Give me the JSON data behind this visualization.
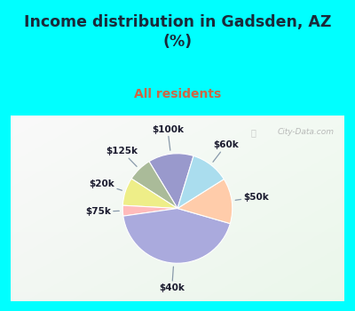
{
  "title": "Income distribution in Gadsden, AZ\n(%)",
  "subtitle": "All residents",
  "title_color": "#1a2a3a",
  "subtitle_color": "#cc6644",
  "bg_color": "#00ffff",
  "chart_bg_colors": [
    "#d8eed8",
    "#e8f5e8"
  ],
  "labels": [
    "$100k",
    "$125k",
    "$20k",
    "$75k",
    "$40k",
    "$50k",
    "$60k"
  ],
  "values": [
    13,
    7,
    8,
    3,
    42,
    13,
    11
  ],
  "colors": [
    "#9999cc",
    "#aabb99",
    "#eeee88",
    "#ffbbbb",
    "#aaaadd",
    "#ffccaa",
    "#aaddee"
  ],
  "watermark": "City-Data.com",
  "startangle": 73
}
